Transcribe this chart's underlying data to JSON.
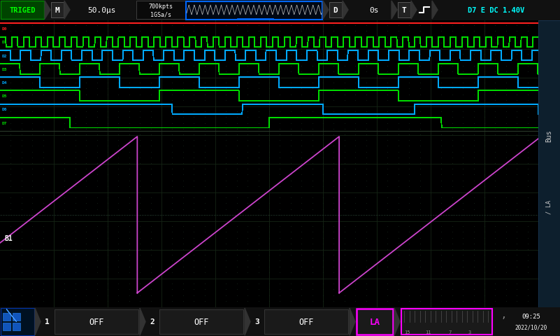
{
  "bg_color": "#000000",
  "header_bg": "#111111",
  "grid_color": "#152515",
  "dot_color": "#1a3020",
  "header": {
    "triged_text": "TRIGED",
    "triged_facecolor": "#004400",
    "triged_edgecolor": "#006600",
    "triged_textcolor": "#00ff00",
    "m_text": "M",
    "time_text": "50.0μs",
    "pts_text": "700kpts",
    "rate_text": "1GSa/s",
    "wave_color": "#cccccc",
    "wave_box_edge": "#0055ff",
    "wave_pos_color": "#00aaff",
    "d_text": "D",
    "delay_text": "0s",
    "t_text": "T",
    "trig_info": "D7 E DC 1.40V",
    "trig_color": "#00ffff"
  },
  "right_panel_color": "#0d1f2d",
  "right_panel_edge": "#1a3a5a",
  "bus_text_color": "#cccccc",
  "digital_channels": [
    {
      "name": "D0",
      "color": "#ff2020",
      "type": "high"
    },
    {
      "name": "D1",
      "color": "#00dd00",
      "type": "fast_clock",
      "period": 0.022,
      "duty": 0.5
    },
    {
      "name": "D2",
      "color": "#00aaff",
      "type": "clock",
      "period": 0.038,
      "duty": 0.5
    },
    {
      "name": "D3",
      "color": "#00dd00",
      "type": "clock",
      "period": 0.074,
      "duty": 0.5
    },
    {
      "name": "D4",
      "color": "#00aaff",
      "type": "clock",
      "period": 0.148,
      "duty": 0.5
    },
    {
      "name": "D5",
      "color": "#00dd00",
      "type": "clock",
      "period": 0.296,
      "duty": 0.5
    },
    {
      "name": "D6",
      "color": "#00aaff",
      "type": "custom6"
    },
    {
      "name": "D7",
      "color": "#00dd00",
      "type": "custom7"
    }
  ],
  "sawtooth_color": "#cc44cc",
  "footer": {
    "icon_bg": "#001133",
    "off_bg": "#1a1a1a",
    "off_edge": "#444444",
    "label_color": "#ffffff",
    "la_color": "#ff00ff",
    "la_edge": "#ff00ff",
    "grid_bar_color": "#666666",
    "time_text": "09:25",
    "date_text": "2022/10/20"
  }
}
